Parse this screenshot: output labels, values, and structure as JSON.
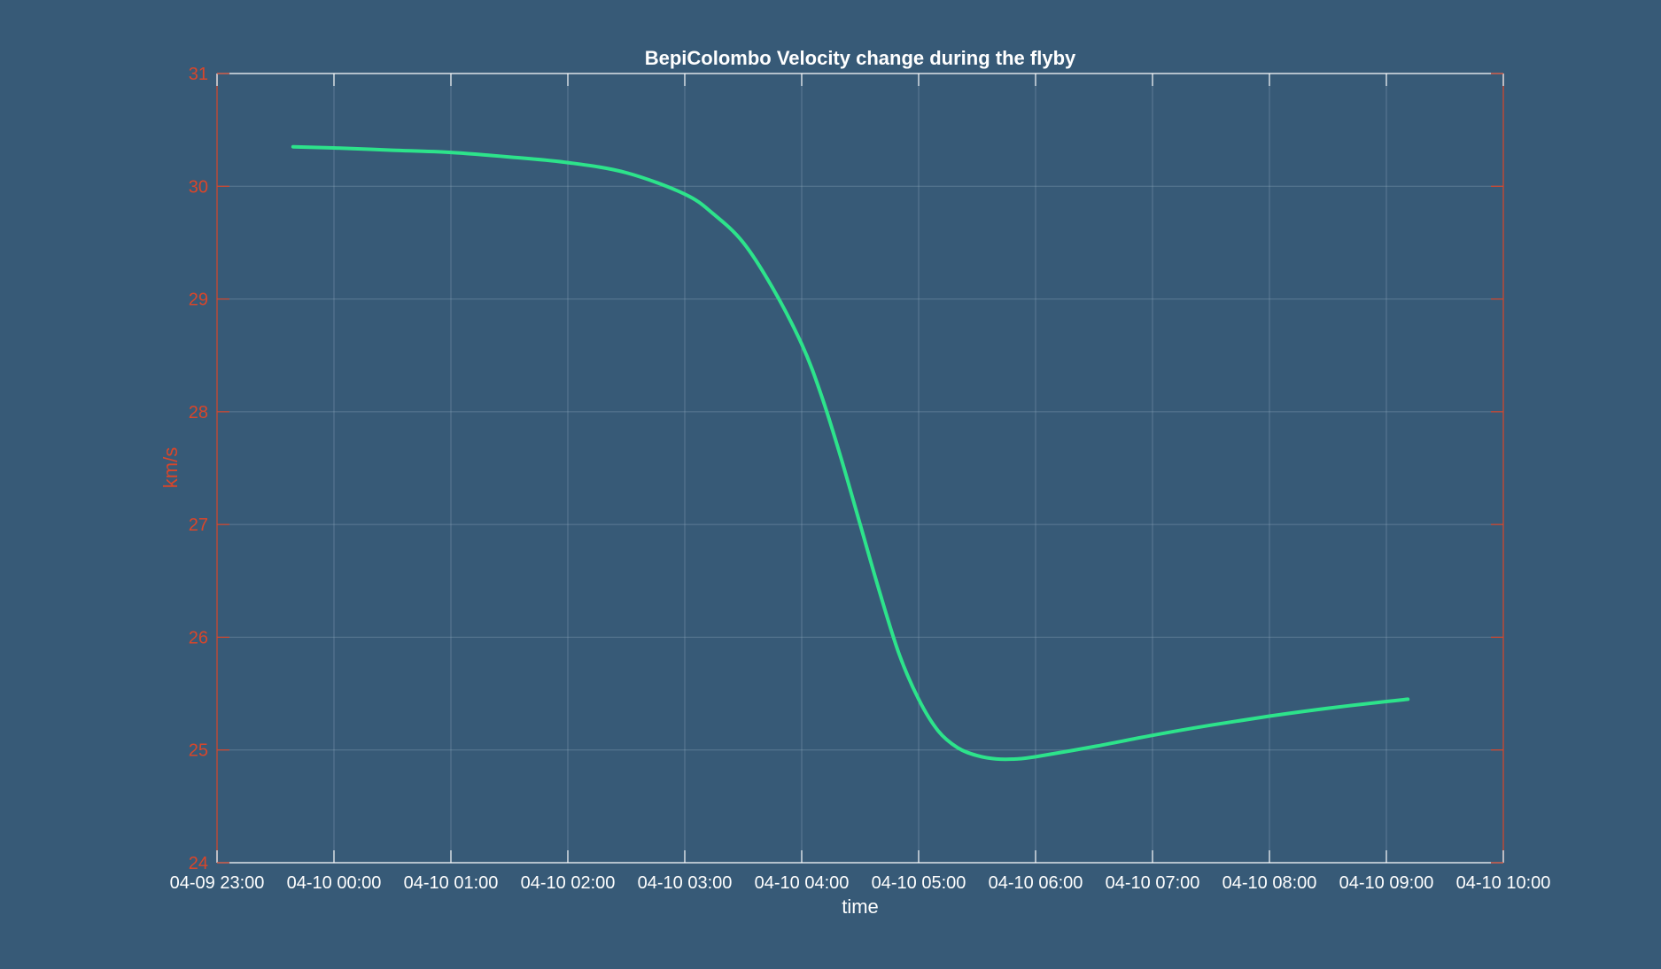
{
  "colors": {
    "background": "#375a77",
    "line": "#2de38b",
    "axis": "#d9462a",
    "grid": "#8aa3b8",
    "text": "#ffffff"
  },
  "chart_data": {
    "type": "line",
    "title": "BepiColombo Velocity change during the flyby",
    "xlabel": "time",
    "ylabel": "km/s",
    "ylim": [
      24,
      31
    ],
    "xlim": [
      "04-09 23:00",
      "04-10 10:00"
    ],
    "yticks": [
      24,
      25,
      26,
      27,
      28,
      29,
      30,
      31
    ],
    "xticks": [
      "04-09 23:00",
      "04-10 00:00",
      "04-10 01:00",
      "04-10 02:00",
      "04-10 03:00",
      "04-10 04:00",
      "04-10 05:00",
      "04-10 06:00",
      "04-10 07:00",
      "04-10 08:00",
      "04-10 09:00",
      "04-10 10:00"
    ],
    "grid": true,
    "series": [
      {
        "x": [
          "04-09 23:39",
          "04-10 00:00",
          "04-10 00:30",
          "04-10 01:00",
          "04-10 01:30",
          "04-10 02:00",
          "04-10 02:30",
          "04-10 03:00",
          "04-10 03:15",
          "04-10 03:30",
          "04-10 03:45",
          "04-10 04:00",
          "04-10 04:10",
          "04-10 04:20",
          "04-10 04:30",
          "04-10 04:40",
          "04-10 04:50",
          "04-10 05:00",
          "04-10 05:10",
          "04-10 05:20",
          "04-10 05:30",
          "04-10 05:40",
          "04-10 05:50",
          "04-10 06:00",
          "04-10 06:30",
          "04-10 07:00",
          "04-10 07:30",
          "04-10 08:00",
          "04-10 08:30",
          "04-10 09:00",
          "04-10 09:11"
        ],
        "values": [
          30.35,
          30.34,
          30.32,
          30.3,
          30.26,
          30.21,
          30.12,
          29.93,
          29.75,
          29.5,
          29.1,
          28.6,
          28.15,
          27.6,
          27.0,
          26.4,
          25.85,
          25.45,
          25.17,
          25.02,
          24.95,
          24.92,
          24.92,
          24.94,
          25.03,
          25.13,
          25.22,
          25.3,
          25.37,
          25.43,
          25.45
        ]
      }
    ]
  }
}
